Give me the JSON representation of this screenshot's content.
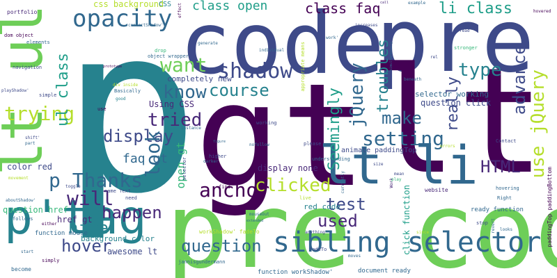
{
  "words": {
    "p": "p",
    "code": "code",
    "pre": "pre",
    "gt": "gt",
    "lt": "lt",
    "pre_code": "pre code",
    "lt_li": "lt li",
    "lt_ul": "lt ul",
    "p_tag": "p'tag",
    "sibling_selector": "sibling selector",
    "opacity": "opacity",
    "shadow": "shadow",
    "want": "want",
    "course": "course",
    "know": "know",
    "tried": "tried",
    "trying": "trying",
    "display": "display",
    "look": "look",
    "p_thanks": "p Thanks",
    "will": "will",
    "happen": "happen",
    "hide": "hide",
    "hover": "hover",
    "question": "question",
    "anchor": "anchor",
    "clicked": "clicked",
    "used": "used",
    "test": "test",
    "make": "make",
    "setting": "setting",
    "jquery": "jQuery",
    "seemingly": "Seemingly",
    "troubles": "troubles",
    "class_faq": "class faq",
    "li_class": "li class",
    "class_open": "class open",
    "type": "type",
    "advance": "advance",
    "use_jquery": "use jQuery",
    "really": "really",
    "html": "HTML",
    "ul_class": "ul class",
    "faq_gt": "faq gt",
    "open_gt": "open gt",
    "display_none": "display none",
    "red_code": "red code",
    "click_function": "click function",
    "color_red": "color red",
    "question_href": "question href",
    "href_gt": "href gt",
    "awesome_lt": "awesome lt",
    "background_color": "background color",
    "function_mouse": "function mouse",
    "using_css": "Using CSS",
    "completely_new": "completely new",
    "css_background": "css background",
    "css": "CSS",
    "portfolio": "portfolio",
    "dom_object": "dom object",
    "elements": "elements",
    "navigation": "navigation",
    "contactshadow": "contactShadow'",
    "drop": "drop",
    "object_wrapper": "object wrapper",
    "div_inside": "div inside",
    "basically": "Basically",
    "good": "good",
    "use": "use",
    "playshadow": "playShadow'",
    "simple": "simple",
    "shift": "shift'",
    "part": "part",
    "instance": "instance",
    "working": "working",
    "nofollow": "nofollow",
    "please": "please",
    "selector_working": "selector working",
    "question_click": "question click",
    "animate_paddingtop": "animate paddingTop",
    "appropriate_means": "appropriate means",
    "individual": "individual",
    "generate": "generate",
    "effect": "effect",
    "work": "work'",
    "increases": "increases",
    "example": "example",
    "hovered": "hovered",
    "read": "read",
    "stronger": "stronger",
    "rel": "rel",
    "beneath": "beneath",
    "simultaneously": "simultaneously",
    "contact": "Contact",
    "errors": "errors",
    "right": "Right",
    "paddingtop_paddingbottom": "paddingTop paddingBottom",
    "hovering": "hovering",
    "ready_function": "ready function",
    "revert": "revert",
    "stop": "stop",
    "website": "website",
    "work_cap": "Work",
    "fadeto": "fadeTo",
    "mouseout": "mouseOut",
    "live": "live",
    "moves": "moves",
    "currently": "currently",
    "understanding": "understanding",
    "find": "find",
    "higher": "higher",
    "darker": "darker",
    "selector": "selector",
    "name_text": "name Text",
    "need": "need",
    "aboutshadow": "aboutShadow'",
    "follows": "follows",
    "either": "either",
    "start": "start",
    "become": "become",
    "workshadow_fadeto": "workShadow' fadeTo",
    "jannisgundermann": "jannisgundermann",
    "function_workshadow": "function workShadow'",
    "document_ready": "document ready",
    "simply": "simply",
    "movement": "movement",
    "toggle": "toggle",
    "call": "call",
    "anything": "anything",
    "prototype": "prototype",
    "figure": "figure",
    "since": "since",
    "extended": "extended",
    "mean": "mean",
    "play": "play",
    "looks": "looks",
    "size": "size"
  },
  "colors": {
    "purple_dark": "#440154",
    "purple": "#482878",
    "indigo": "#3e4a89",
    "blue": "#31688e",
    "teal": "#26828e",
    "teal_green": "#1f9e89",
    "green": "#35b779",
    "light_green": "#6ece58",
    "lime": "#b5de2b",
    "yellow": "#fde725"
  }
}
